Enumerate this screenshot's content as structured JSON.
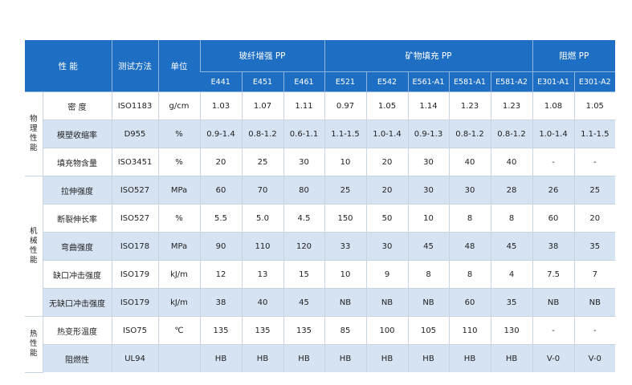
{
  "chart_data": {
    "type": "table",
    "header": {
      "property": "性  能",
      "method": "测试方法",
      "unit": "单位",
      "groups": [
        "玻纤增强 PP",
        "矿物填充 PP",
        "阻燃 PP"
      ]
    },
    "grades": [
      "E441",
      "E451",
      "E461",
      "E521",
      "E542",
      "E561-A1",
      "E581-A1",
      "E581-A2",
      "E301-A1",
      "E301-A2"
    ],
    "categories": [
      "物理性能",
      "机械性能",
      "热性能"
    ],
    "rows": [
      {
        "property": "密  度",
        "method": "ISO1183",
        "unit": "g/cm",
        "values": [
          "1.03",
          "1.07",
          "1.11",
          "0.97",
          "1.05",
          "1.14",
          "1.23",
          "1.23",
          "1.08",
          "1.05"
        ]
      },
      {
        "property": "模塑收缩率",
        "method": "D955",
        "unit": "%",
        "values": [
          "0.9-1.4",
          "0.8-1.2",
          "0.6-1.1",
          "1.1-1.5",
          "1.0-1.4",
          "0.9-1.3",
          "0.8-1.2",
          "0.8-1.2",
          "1.0-1.4",
          "1.1-1.5"
        ]
      },
      {
        "property": "填充物含量",
        "method": "ISO3451",
        "unit": "%",
        "values": [
          "20",
          "25",
          "30",
          "10",
          "20",
          "30",
          "40",
          "40",
          "-",
          "-"
        ]
      },
      {
        "property": "拉伸强度",
        "method": "ISO527",
        "unit": "MPa",
        "values": [
          "60",
          "70",
          "80",
          "25",
          "20",
          "30",
          "30",
          "28",
          "26",
          "25"
        ]
      },
      {
        "property": "断裂伸长率",
        "method": "ISO527",
        "unit": "%",
        "values": [
          "5.5",
          "5.0",
          "4.5",
          "150",
          "50",
          "10",
          "8",
          "8",
          "60",
          "20"
        ]
      },
      {
        "property": "弯曲强度",
        "method": "ISO178",
        "unit": "MPa",
        "values": [
          "90",
          "110",
          "120",
          "33",
          "30",
          "45",
          "48",
          "45",
          "38",
          "35"
        ]
      },
      {
        "property": "缺口冲击强度",
        "method": "ISO179",
        "unit": "kJ/m",
        "values": [
          "12",
          "13",
          "15",
          "10",
          "9",
          "8",
          "8",
          "4",
          "7.5",
          "7"
        ]
      },
      {
        "property": "无缺口冲击强度",
        "method": "ISO179",
        "unit": "kJ/m",
        "values": [
          "38",
          "40",
          "45",
          "NB",
          "NB",
          "NB",
          "60",
          "35",
          "NB",
          "NB"
        ]
      },
      {
        "property": "热变形温度",
        "method": "ISO75",
        "unit": "℃",
        "values": [
          "135",
          "135",
          "135",
          "85",
          "100",
          "105",
          "110",
          "130",
          "-",
          "-"
        ]
      },
      {
        "property": "阻燃性",
        "method": "UL94",
        "unit": "",
        "values": [
          "HB",
          "HB",
          "HB",
          "HB",
          "HB",
          "HB",
          "HB",
          "HB",
          "V-0",
          "V-0"
        ]
      }
    ]
  }
}
